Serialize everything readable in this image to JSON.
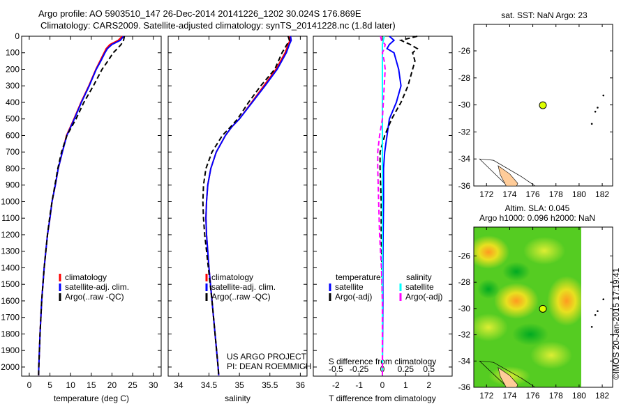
{
  "title": {
    "line1": "Argo profile: AO 5903510_147 26-Dec-2014 20141226_1202 30.024S 176.869E",
    "line2": "Climatology: CARS2009. Satellite-adjusted climatology: synTS_20141228.nc (1.8d later)"
  },
  "credit": "©IMOS 20-Jan-2015 17:19:41",
  "project": {
    "line1": "US ARGO PROJECT",
    "line2": "PI: DEAN ROEMMICH"
  },
  "colors": {
    "clim": "#ff0000",
    "sat": "#0000ff",
    "argo": "#000000",
    "s_sat": "#00ffff",
    "s_argo": "#ff00ff",
    "float": "#ddff00",
    "land": "#ffcc99"
  },
  "chart_data": [
    {
      "type": "line",
      "name": "temperature",
      "xlabel": "temperature (deg C)",
      "xlim": [
        -1.85,
        31.9
      ],
      "ylim": [
        0,
        2055
      ],
      "xticks": [
        0,
        5,
        10,
        15,
        20,
        25,
        30
      ],
      "yticks": [
        0,
        100,
        200,
        300,
        400,
        500,
        600,
        700,
        800,
        900,
        1000,
        1100,
        1200,
        1300,
        1400,
        1500,
        1600,
        1700,
        1800,
        1900,
        2000
      ],
      "legend": [
        "climatology",
        "satellite-adj. clim.",
        "Argo(..raw -QC)"
      ],
      "depth": [
        0,
        25,
        50,
        75,
        100,
        150,
        200,
        300,
        400,
        500,
        600,
        700,
        800,
        900,
        1000,
        1100,
        1200,
        1300,
        1400,
        1500,
        1600,
        1700,
        1800,
        1900,
        2000,
        2050
      ],
      "series": [
        {
          "name": "climatology",
          "values": [
            22.5,
            21.5,
            19.5,
            18.6,
            18.1,
            17.1,
            16.1,
            14.4,
            12.5,
            10.8,
            9,
            8,
            7,
            6.3,
            5.5,
            5,
            4.4,
            4,
            3.6,
            3.3,
            3,
            2.8,
            2.6,
            2.45,
            2.3,
            2.25
          ]
        },
        {
          "name": "satellite-adj. clim.",
          "values": [
            22.8,
            22,
            20,
            18.9,
            18.3,
            17.3,
            16.2,
            14.5,
            12.6,
            10.9,
            9.1,
            8,
            7,
            6.3,
            5.5,
            5,
            4.4,
            4,
            3.6,
            3.3,
            3,
            2.8,
            2.6,
            2.45,
            2.3,
            2.25
          ]
        },
        {
          "name": "Argo(..raw -QC)",
          "values": [
            23,
            22.8,
            22.2,
            21.3,
            20.3,
            19,
            17.6,
            15.5,
            13.2,
            11.3,
            9.1,
            7.8,
            6.9,
            6.2,
            5.5,
            4.9,
            4.4,
            4,
            3.6,
            3.3,
            3,
            2.8,
            2.6,
            2.45,
            2.3,
            2.25
          ]
        }
      ]
    },
    {
      "type": "line",
      "name": "salinity",
      "xlabel": "salinity",
      "xlim": [
        33.83,
        36.11
      ],
      "ylim": [
        0,
        2055
      ],
      "xticks": [
        34,
        34.5,
        35,
        35.5,
        36
      ],
      "legend": [
        "climatology",
        "satellite-adj. clim.",
        "Argo(..raw -QC)"
      ],
      "depth": [
        0,
        25,
        50,
        100,
        200,
        300,
        400,
        500,
        550,
        600,
        700,
        800,
        900,
        1000,
        1100,
        1200,
        1300,
        1400,
        1600,
        1800,
        2000,
        2050
      ],
      "series": [
        {
          "name": "climatology",
          "values": [
            35.82,
            35.83,
            35.8,
            35.75,
            35.6,
            35.4,
            35.2,
            35.0,
            34.87,
            34.77,
            34.62,
            34.53,
            34.48,
            34.46,
            34.45,
            34.46,
            34.48,
            34.5,
            34.55,
            34.6,
            34.65,
            34.66
          ]
        },
        {
          "name": "satellite-adj. clim.",
          "values": [
            35.84,
            35.85,
            35.82,
            35.77,
            35.62,
            35.42,
            35.21,
            35.0,
            34.87,
            34.77,
            34.62,
            34.53,
            34.48,
            34.46,
            34.45,
            34.46,
            34.48,
            34.5,
            34.55,
            34.6,
            34.65,
            34.66
          ]
        },
        {
          "name": "Argo(..raw -QC)",
          "values": [
            35.8,
            35.82,
            35.78,
            35.7,
            35.58,
            35.35,
            35.15,
            34.97,
            34.85,
            34.72,
            34.55,
            34.45,
            34.41,
            34.4,
            34.41,
            34.43,
            34.46,
            34.49,
            34.55,
            34.6,
            34.65,
            34.66
          ]
        }
      ]
    },
    {
      "type": "line",
      "name": "differences",
      "xlabel": "T difference from climatology",
      "x2label": "S difference from climatology",
      "xlim": [
        -2.97,
        3.0
      ],
      "ylim": [
        0,
        2055
      ],
      "xticks": [
        -2,
        -1,
        0,
        1,
        2
      ],
      "x2ticks": [
        "-0.5",
        "-0.25",
        "0",
        "0.25",
        "0.5"
      ],
      "x2values": [
        -0.5,
        -0.25,
        0,
        0.25,
        0.5
      ],
      "legend_titles": [
        "temperature",
        "salinity"
      ],
      "legend": [
        "satellite",
        "Argo(-adj)",
        "satellite",
        "Argo(-adj)"
      ],
      "depth": [
        0,
        25,
        50,
        75,
        100,
        150,
        200,
        300,
        400,
        500,
        600,
        700,
        800,
        1000,
        1200,
        1400,
        1600,
        1800,
        2000,
        2050
      ],
      "series": [
        {
          "name": "T satellite",
          "values": [
            0.3,
            0.5,
            0.3,
            0.2,
            0.5,
            0.6,
            0.7,
            0.8,
            0.6,
            0.3,
            0.2,
            0.1,
            0.05,
            0.05,
            0.03,
            0.02,
            0.02,
            0.01,
            0,
            0
          ]
        },
        {
          "name": "T Argo(-adj)",
          "values": [
            1.5,
            0.8,
            1.2,
            1.5,
            1.3,
            1.4,
            1.3,
            1.1,
            0.8,
            0.4,
            0.1,
            -0.1,
            -0.1,
            -0.05,
            -0.05,
            -0.02,
            0,
            0,
            0,
            0
          ]
        },
        {
          "name": "S satellite",
          "values": [
            0.02,
            0.01,
            0,
            0,
            0,
            0,
            0,
            0,
            0,
            0,
            0,
            0,
            0,
            0,
            0,
            0,
            0,
            0,
            0,
            0
          ]
        },
        {
          "name": "S Argo(-adj)",
          "values": [
            -0.02,
            -0.01,
            0.03,
            0.02,
            0,
            0.02,
            0.03,
            0.02,
            0.01,
            0,
            -0.03,
            -0.05,
            -0.05,
            -0.04,
            -0.03,
            -0.01,
            0,
            0,
            0,
            0
          ]
        }
      ]
    },
    {
      "type": "scatter",
      "name": "sst-map",
      "title": "sat. SST: NaN Argo: 23",
      "xlim": [
        170.9,
        182.9
      ],
      "ylim": [
        -36,
        -24.04
      ],
      "xticks": [
        172,
        174,
        176,
        178,
        180,
        182
      ],
      "yticks": [
        -26,
        -28,
        -30,
        -32,
        -34,
        -36
      ],
      "float": [
        176.869,
        -30.024
      ]
    },
    {
      "type": "heatmap",
      "name": "sla-map",
      "title1": "Altim. SLA: 0.045",
      "title2": "Argo h1000: 0.096 h2000: NaN",
      "xlim": [
        170.9,
        182.9
      ],
      "ylim": [
        -36,
        -23.8
      ],
      "xticks": [
        172,
        174,
        176,
        178,
        180,
        182
      ],
      "yticks": [
        -26,
        -28,
        -30,
        -32,
        -34,
        -36
      ],
      "float": [
        176.869,
        -30.024
      ]
    }
  ]
}
